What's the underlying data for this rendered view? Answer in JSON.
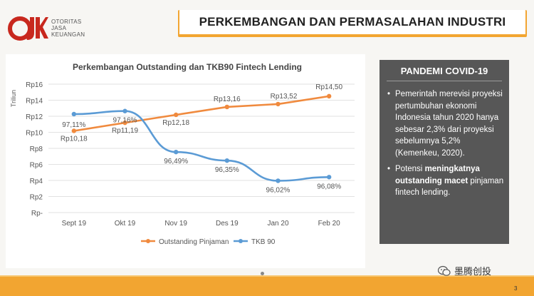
{
  "header": {
    "logo": "OJK",
    "org_lines": [
      "OTORITAS",
      "JASA",
      "KEUANGAN"
    ],
    "title": "PERKEMBANGAN DAN PERMASALAHAN INDUSTRI"
  },
  "side_panel": {
    "title": "PANDEMI COVID-19",
    "bullet1": "Pemerintah merevisi proyeksi pertumbuhan ekonomi Indonesia tahun 2020 hanya sebesar 2,3% dari proyeksi sebelumnya 5,2% (Kemenkeu, 2020).",
    "bullet2_pre": "Potensi ",
    "bullet2_bold": "meningkatnya outstanding macet",
    "bullet2_post": " pinjaman fintech lending."
  },
  "watermark": "墨腾创投",
  "page_number": "3",
  "colors": {
    "orange": "#f2a531",
    "series_orange": "#f08a3e",
    "series_blue": "#5b9bd5",
    "panel_dark": "#575757"
  },
  "chart_data": {
    "type": "line",
    "title": "Perkembangan Outstanding dan TKB90 Fintech Lending",
    "ylabel": "Triliun",
    "categories": [
      "Sept 19",
      "Okt 19",
      "Nov 19",
      "Des 19",
      "Jan 20",
      "Feb 20"
    ],
    "y_ticks": [
      "Rp-",
      "Rp2",
      "Rp4",
      "Rp6",
      "Rp8",
      "Rp10",
      "Rp12",
      "Rp14",
      "Rp16"
    ],
    "ylim": [
      0,
      16
    ],
    "legend_position": "bottom",
    "grid": true,
    "series": [
      {
        "name": "Outstanding Pinjaman",
        "values": [
          10.18,
          11.19,
          12.18,
          13.16,
          13.52,
          14.5
        ],
        "labels": [
          "Rp10,18",
          "Rp11,19",
          "Rp12,18",
          "Rp13,16",
          "Rp13,52",
          "Rp14,50"
        ],
        "color": "#f08a3e"
      },
      {
        "name": "TKB 90",
        "values": [
          97.11,
          97.16,
          96.49,
          96.35,
          96.02,
          96.08
        ],
        "labels": [
          "97,11%",
          "97,16%",
          "96,49%",
          "96,35%",
          "96,02%",
          "96,08%"
        ],
        "color": "#5b9bd5"
      }
    ]
  }
}
